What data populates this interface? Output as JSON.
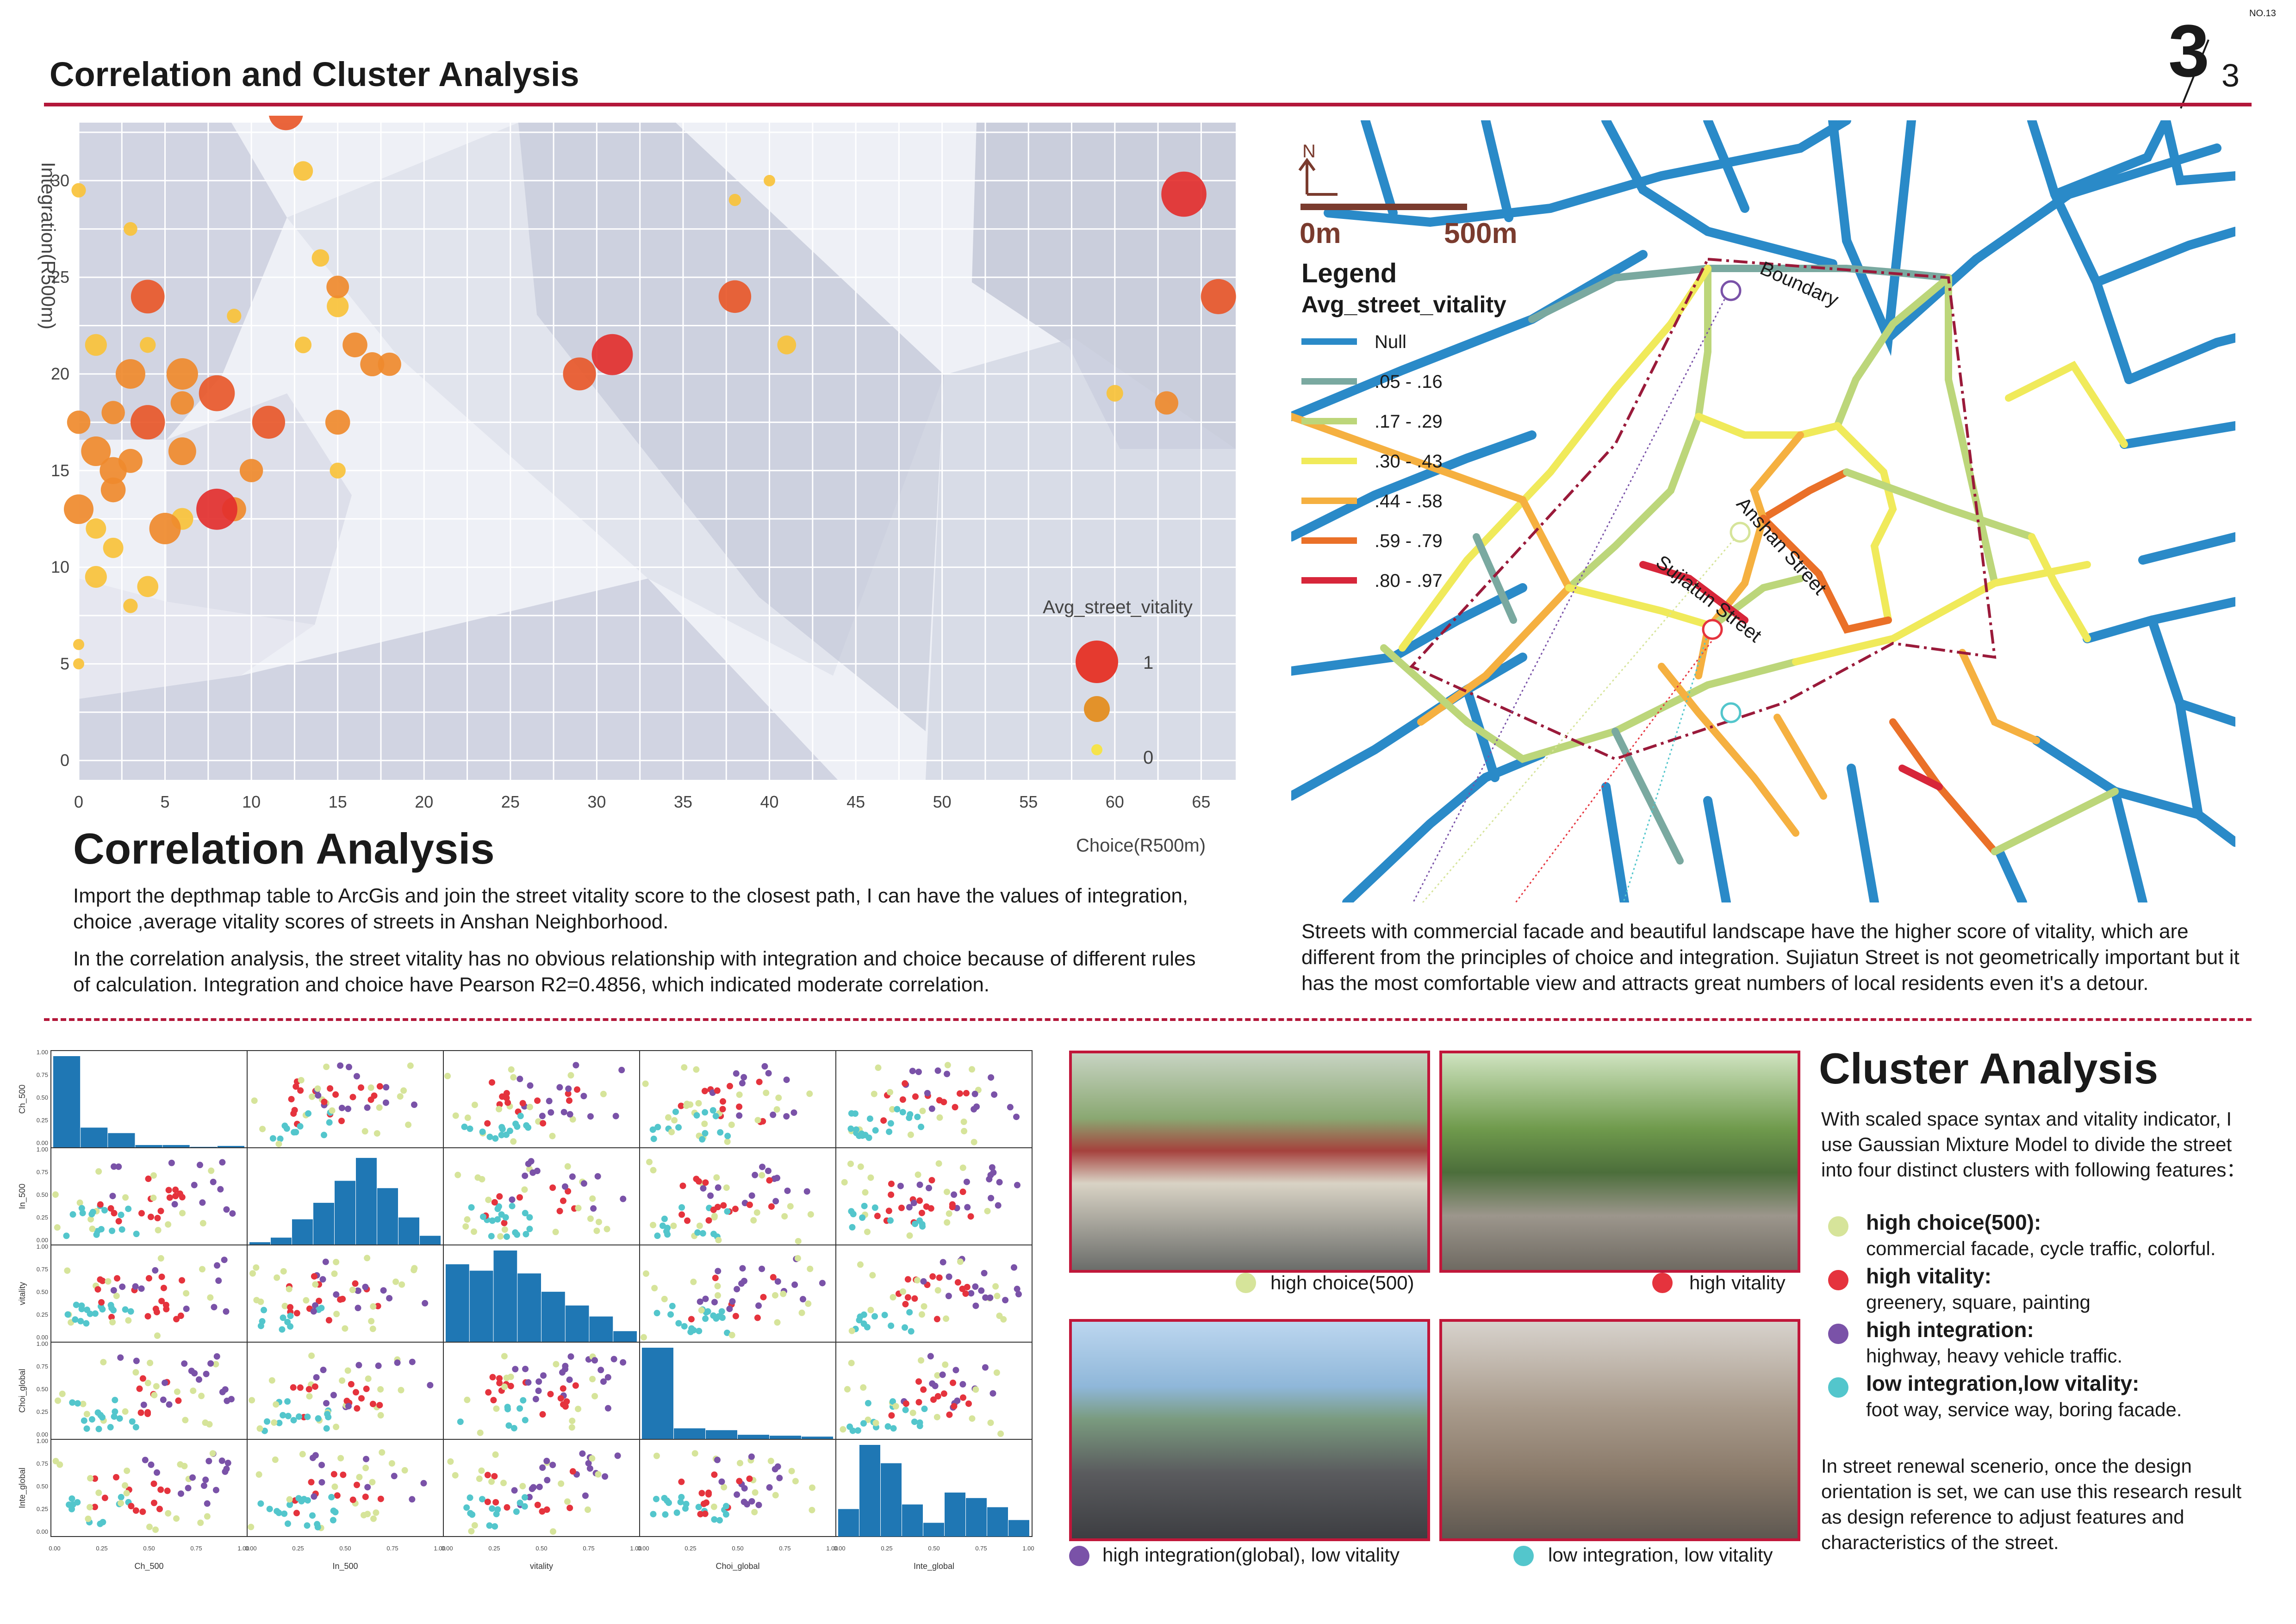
{
  "header": {
    "title": "Correlation and Cluster Analysis",
    "page_no": "NO.13",
    "page_fraction_num": "3",
    "page_fraction_den": "3"
  },
  "chart_data": [
    {
      "type": "scatter",
      "title": "",
      "xlabel": "Choice(R500m)",
      "ylabel": "Integration(R500m)",
      "xlim": [
        0,
        67
      ],
      "ylim": [
        -1,
        33
      ],
      "xticks": [
        0,
        5,
        10,
        15,
        20,
        25,
        30,
        35,
        40,
        45,
        50,
        55,
        60,
        65
      ],
      "yticks": [
        0,
        5,
        10,
        15,
        20,
        25,
        30
      ],
      "size_legend": {
        "title": "Avg_street_vitality",
        "labels": [
          "1",
          "0"
        ]
      },
      "points": [
        {
          "x": 64,
          "y": 29.3,
          "v": 0.97
        },
        {
          "x": 66,
          "y": 24,
          "v": 0.7
        },
        {
          "x": 12,
          "y": 33.5,
          "v": 0.68
        },
        {
          "x": 4,
          "y": 24,
          "v": 0.66
        },
        {
          "x": 30.9,
          "y": 21,
          "v": 0.86
        },
        {
          "x": 29,
          "y": 20,
          "v": 0.64
        },
        {
          "x": 38,
          "y": 24,
          "v": 0.63
        },
        {
          "x": 6,
          "y": 20,
          "v": 0.6
        },
        {
          "x": 8,
          "y": 19,
          "v": 0.72
        },
        {
          "x": 4,
          "y": 17.5,
          "v": 0.68
        },
        {
          "x": 11,
          "y": 17.5,
          "v": 0.64
        },
        {
          "x": 8,
          "y": 13,
          "v": 0.86
        },
        {
          "x": 5,
          "y": 12,
          "v": 0.6
        },
        {
          "x": 3,
          "y": 20,
          "v": 0.55
        },
        {
          "x": 1,
          "y": 16,
          "v": 0.55
        },
        {
          "x": 0,
          "y": 13,
          "v": 0.55
        },
        {
          "x": 6,
          "y": 16,
          "v": 0.5
        },
        {
          "x": 2,
          "y": 15,
          "v": 0.48
        },
        {
          "x": 15,
          "y": 17.5,
          "v": 0.42
        },
        {
          "x": 16,
          "y": 21.5,
          "v": 0.42
        },
        {
          "x": 17,
          "y": 20.5,
          "v": 0.4
        },
        {
          "x": 18,
          "y": 20.5,
          "v": 0.38
        },
        {
          "x": 63,
          "y": 18.5,
          "v": 0.38
        },
        {
          "x": 9,
          "y": 13,
          "v": 0.4
        },
        {
          "x": 10,
          "y": 15,
          "v": 0.38
        },
        {
          "x": 15,
          "y": 24.5,
          "v": 0.36
        },
        {
          "x": 15,
          "y": 23.5,
          "v": 0.34
        },
        {
          "x": 6,
          "y": 18.5,
          "v": 0.38
        },
        {
          "x": 2,
          "y": 18,
          "v": 0.38
        },
        {
          "x": 2,
          "y": 14,
          "v": 0.42
        },
        {
          "x": 0,
          "y": 17.5,
          "v": 0.38
        },
        {
          "x": 1,
          "y": 21.5,
          "v": 0.34
        },
        {
          "x": 3,
          "y": 15.5,
          "v": 0.4
        },
        {
          "x": 1,
          "y": 9.5,
          "v": 0.34
        },
        {
          "x": 4,
          "y": 9,
          "v": 0.32
        },
        {
          "x": 6,
          "y": 12.5,
          "v": 0.34
        },
        {
          "x": 2,
          "y": 11,
          "v": 0.3
        },
        {
          "x": 1,
          "y": 12,
          "v": 0.3
        },
        {
          "x": 13,
          "y": 30.5,
          "v": 0.28
        },
        {
          "x": 14,
          "y": 26,
          "v": 0.22
        },
        {
          "x": 13,
          "y": 21.5,
          "v": 0.2
        },
        {
          "x": 41,
          "y": 21.5,
          "v": 0.26
        },
        {
          "x": 60,
          "y": 19,
          "v": 0.2
        },
        {
          "x": 0,
          "y": 29.5,
          "v": 0.14
        },
        {
          "x": 9,
          "y": 23,
          "v": 0.14
        },
        {
          "x": 4,
          "y": 21.5,
          "v": 0.18
        },
        {
          "x": 3,
          "y": 27.5,
          "v": 0.12
        },
        {
          "x": 38,
          "y": 29,
          "v": 0.08
        },
        {
          "x": 40,
          "y": 30,
          "v": 0.06
        },
        {
          "x": 15,
          "y": 15,
          "v": 0.18
        },
        {
          "x": 3,
          "y": 8,
          "v": 0.14
        },
        {
          "x": 0,
          "y": 6,
          "v": 0.05
        },
        {
          "x": 0,
          "y": 5,
          "v": 0.05
        }
      ]
    }
  ],
  "corr": {
    "heading": "Correlation Analysis",
    "p1": "Import the depthmap table to ArcGis and join the street vitality score to the closest path, I can have the values of integration, choice ,average vitality scores of streets in Anshan Neighborhood.",
    "p2": "In the correlation analysis, the street vitality has no obvious relationship with integration and choice because of different rules of calculation. Integration and choice have Pearson R2=0.4856, which indicated moderate correlation."
  },
  "map": {
    "north": "N",
    "scale_start": "0m",
    "scale_end": "500m",
    "legend_title": "Legend",
    "legend_subtitle": "Avg_street_vitality",
    "legend": [
      {
        "label": "Null",
        "color": "#2a8ac8"
      },
      {
        "label": ".05 - .16",
        "color": "#7aa9a0"
      },
      {
        "label": ".17 - .29",
        "color": "#bcd67a"
      },
      {
        "label": ".30 - .43",
        "color": "#f0ea5a"
      },
      {
        "label": ".44 - .58",
        "color": "#f5b040"
      },
      {
        "label": ".59 - .79",
        "color": "#ea7028"
      },
      {
        "label": ".80 - .97",
        "color": "#d7263a"
      }
    ],
    "boundary_label": "Boundary",
    "street1": "Anshan Street",
    "street2": "Sujiatun Street",
    "caption": "Streets with commercial facade and beautiful landscape have the higher score of vitality, which are different from the principles of choice and integration. Sujiatun Street is not geometrically important but it has the most comfortable view and attracts great numbers of local residents even it's a detour."
  },
  "matrix": {
    "vars": [
      "Ch_500",
      "In_500",
      "vitality",
      "Choi_global",
      "Inte_global"
    ],
    "tick_labels": [
      "0.00",
      "0.25",
      "0.50",
      "0.75",
      "1.00"
    ],
    "hist1": [
      1.0,
      0.22,
      0.16,
      0.03,
      0.03,
      0.01,
      0.02
    ],
    "hist2": [
      0.03,
      0.08,
      0.28,
      0.46,
      0.7,
      0.95,
      0.62,
      0.3,
      0.1
    ],
    "hist3": [
      0.85,
      0.78,
      1.0,
      0.75,
      0.55,
      0.4,
      0.28,
      0.12
    ],
    "hist4": [
      1.0,
      0.12,
      0.1,
      0.05,
      0.04,
      0.03
    ],
    "hist5": [
      0.3,
      1.0,
      0.8,
      0.35,
      0.15,
      0.48,
      0.42,
      0.32,
      0.18
    ]
  },
  "cluster": {
    "heading": "Cluster Analysis",
    "intro": "With scaled space syntax and vitality indicator, I use Gaussian Mixture Model to divide the street into four distinct clusters with following features：",
    "features": [
      {
        "head": "high choice(500):",
        "desc": "commercial facade, cycle traffic, colorful.",
        "color": "#d6e49a"
      },
      {
        "head": "high vitality:",
        "desc": "greenery, square, painting",
        "color": "#e5333d"
      },
      {
        "head": "high integration:",
        "desc": "highway, heavy vehicle traffic.",
        "color": "#7a52a8"
      },
      {
        "head": "low integration,low vitality:",
        "desc": "foot way, service way, boring facade.",
        "color": "#53c6cc"
      }
    ],
    "outro": "In street renewal scenerio, once the design orientation is set, we can use this research result as design reference to adjust features and characteristics of the street."
  },
  "photos": [
    {
      "caption": "high choice(500)",
      "color": "#d6e49a"
    },
    {
      "caption": "high vitality",
      "color": "#e5333d"
    },
    {
      "caption": "high integration(global), low vitality",
      "color": "#7a52a8"
    },
    {
      "caption": "low integration, low vitality",
      "color": "#53c6cc"
    }
  ]
}
